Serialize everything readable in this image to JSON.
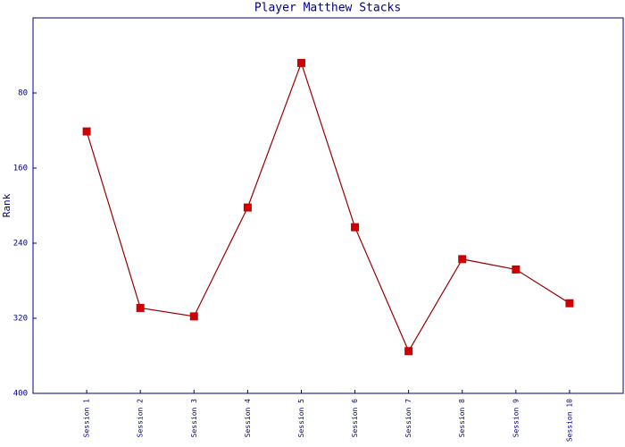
{
  "chart_data": {
    "type": "line",
    "title": "Player Matthew Stacks",
    "y_label": "Rank",
    "categories": [
      "Session 1",
      "Session 2",
      "Session 3",
      "Session 4",
      "Session 5",
      "Session 6",
      "Session 7",
      "Session 8",
      "Session 9",
      "Session 10"
    ],
    "series": [
      {
        "name": "Rank",
        "color": "#990000",
        "marker_color": "#cc0000",
        "values": [
          121,
          309,
          318,
          202,
          48,
          223,
          355,
          257,
          268,
          304
        ]
      }
    ],
    "ylim": [
      400,
      0
    ],
    "yticks": [
      80,
      160,
      240,
      320,
      400
    ],
    "grid": false
  }
}
